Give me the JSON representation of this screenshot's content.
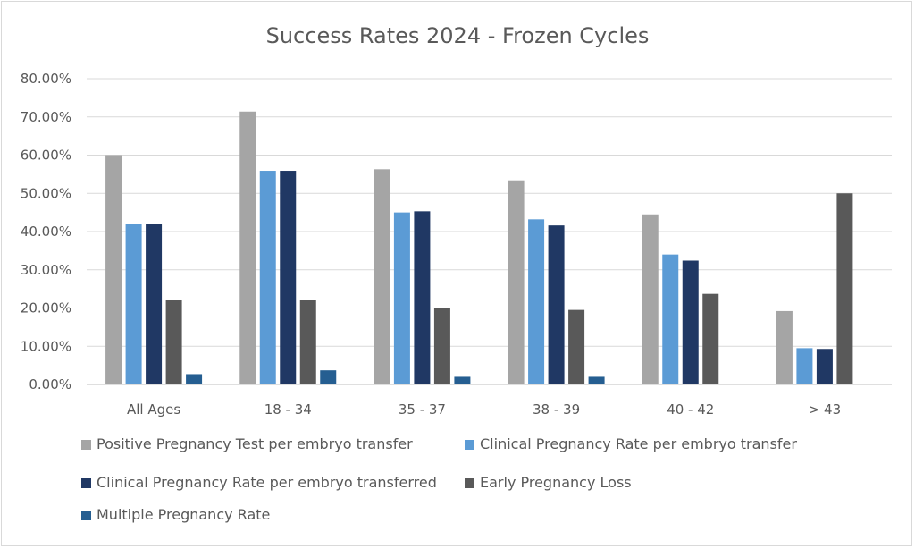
{
  "chart_data": {
    "type": "bar",
    "title": "Success Rates 2024 - Frozen Cycles",
    "xlabel": "",
    "ylabel": "",
    "ylim": [
      0,
      80
    ],
    "yticks": [
      "0.00%",
      "10.00%",
      "20.00%",
      "30.00%",
      "40.00%",
      "50.00%",
      "60.00%",
      "70.00%",
      "80.00%"
    ],
    "categories": [
      "All Ages",
      "18 - 34",
      "35 - 37",
      "38 - 39",
      "40 - 42",
      "> 43"
    ],
    "legend_position": "bottom",
    "grid": true,
    "series": [
      {
        "name": "Positive Pregnancy Test per embryo transfer",
        "color": "#a5a5a5",
        "values": [
          60.0,
          71.4,
          56.3,
          53.4,
          44.5,
          19.2
        ]
      },
      {
        "name": "Clinical Pregnancy Rate per embryo transfer",
        "color": "#5b9bd5",
        "values": [
          41.9,
          55.9,
          45.0,
          43.2,
          34.0,
          9.5
        ]
      },
      {
        "name": "Clinical Pregnancy Rate per embryo transferred",
        "color": "#203864",
        "values": [
          41.9,
          55.9,
          45.3,
          41.6,
          32.4,
          9.3
        ]
      },
      {
        "name": "Early Pregnancy Loss",
        "color": "#595959",
        "values": [
          22.0,
          22.0,
          20.0,
          19.5,
          23.7,
          50.0
        ]
      },
      {
        "name": "Multiple Pregnancy Rate",
        "color": "#255e91",
        "values": [
          2.7,
          3.7,
          2.0,
          2.0,
          0,
          0
        ]
      }
    ]
  }
}
